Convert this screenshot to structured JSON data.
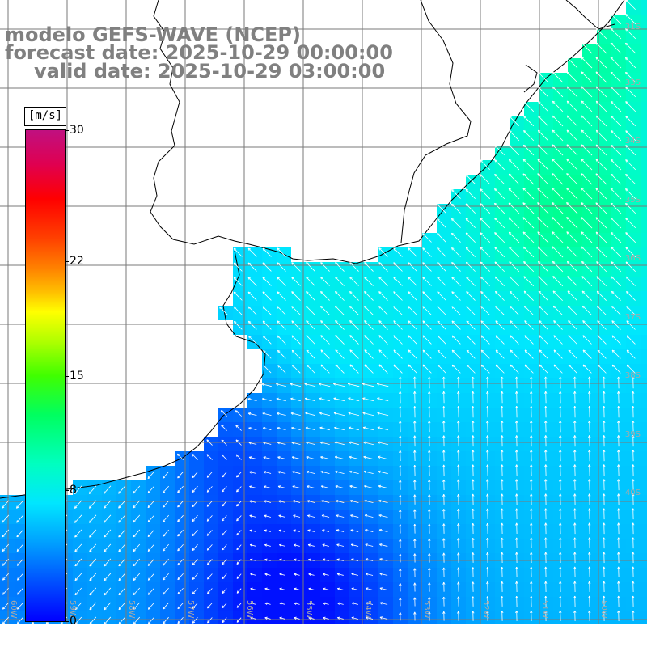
{
  "titles": {
    "line1": "modelo GEFS-WAVE (NCEP)",
    "line2": "forecast date: 2025-10-29 00:00:00",
    "line3": "valid date: 2025-10-29 03:00:00"
  },
  "colorbar": {
    "unit": "[m/s]",
    "ticks": [
      {
        "label": "30",
        "value": 30
      },
      {
        "label": "22",
        "value": 22
      },
      {
        "label": "15",
        "value": 15
      },
      {
        "label": "8",
        "value": 8
      },
      {
        "label": "0",
        "value": 0
      }
    ],
    "min": 0,
    "max": 30
  },
  "map": {
    "lat_labels": [
      "31S",
      "33S",
      "34S",
      "35S",
      "36S",
      "37S",
      "38S",
      "39S",
      "40S"
    ],
    "lon_labels": [
      "60W",
      "59W",
      "58W",
      "57W",
      "56W",
      "55W",
      "54W",
      "53W",
      "52W",
      "51W",
      "50W"
    ],
    "colors": {
      "land": "#ffffff",
      "coast": "#000000",
      "grid": "#7a7a7a",
      "arrow": "#ffffff"
    }
  }
}
